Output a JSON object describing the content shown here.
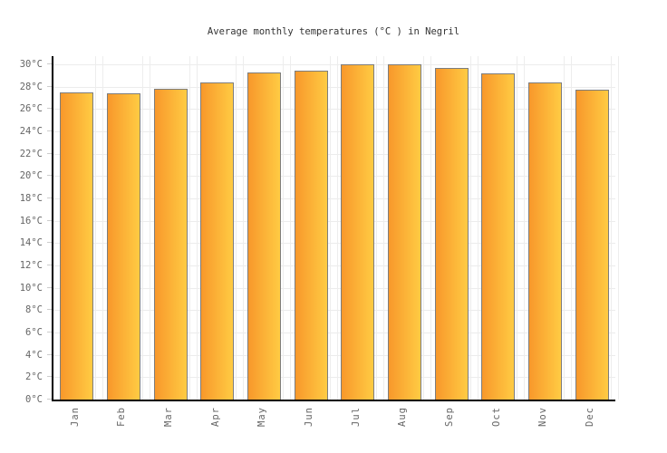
{
  "title": "Average monthly temperatures (°C ) in Negril",
  "chart_data": {
    "type": "bar",
    "title": "Average monthly temperatures (°C ) in Negril",
    "categories": [
      "Jan",
      "Feb",
      "Mar",
      "Apr",
      "May",
      "Jun",
      "Jul",
      "Aug",
      "Sep",
      "Oct",
      "Nov",
      "Dec"
    ],
    "values": [
      27.5,
      27.4,
      27.8,
      28.4,
      29.3,
      29.4,
      30.0,
      30.0,
      29.7,
      29.2,
      28.4,
      27.7
    ],
    "unit": "°C",
    "xlabel": "",
    "ylabel": "",
    "ylim": [
      0,
      30
    ],
    "ytick_step": 2,
    "ytick_labels": [
      "0°C",
      "2°C",
      "4°C",
      "6°C",
      "8°C",
      "10°C",
      "12°C",
      "14°C",
      "16°C",
      "18°C",
      "20°C",
      "22°C",
      "24°C",
      "26°C",
      "28°C",
      "30°C"
    ],
    "grid": "on",
    "legend": "none",
    "colors": {
      "bar_gradient_left": "#F8982B",
      "bar_gradient_right": "#FFCB43",
      "bar_border": "#7D7D7D",
      "axis": "#000000",
      "gridline_horizontal": "#ECECEC",
      "gridline_vertical": "#EDEDED",
      "tick_mark": "#CCCCCC",
      "tick_label": "#666666",
      "title": "#333333",
      "background": "#FFFFFF"
    }
  }
}
